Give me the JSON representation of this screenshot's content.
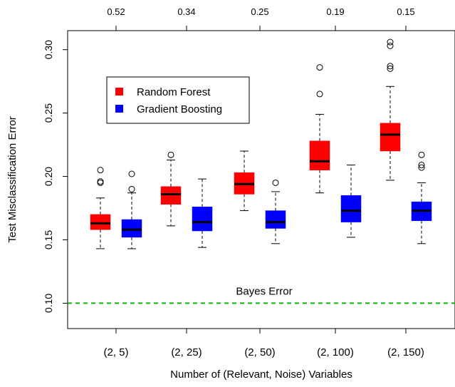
{
  "chart_data": {
    "type": "boxplot",
    "xlabel": "Number of (Relevant, Noise) Variables",
    "ylabel": "Test Misclassification Error",
    "ylim": [
      0.08,
      0.315
    ],
    "yticks": [
      "0.10",
      "0.15",
      "0.20",
      "0.25",
      "0.30"
    ],
    "ytick_values": [
      0.1,
      0.15,
      0.2,
      0.25,
      0.3
    ],
    "categories": [
      "(2, 5)",
      "(2, 25)",
      "(2, 50)",
      "(2, 100)",
      "(2, 150)"
    ],
    "top_axis_labels": [
      "0.52",
      "0.34",
      "0.25",
      "0.19",
      "0.15"
    ],
    "legend_position": "upper-left",
    "series": [
      {
        "name": "Random Forest",
        "color": "#ff0000",
        "boxes": [
          {
            "whisker_low": 0.143,
            "q1": 0.158,
            "median": 0.163,
            "q3": 0.17,
            "whisker_high": 0.183,
            "outliers": [
              0.195,
              0.196,
              0.205
            ]
          },
          {
            "whisker_low": 0.161,
            "q1": 0.178,
            "median": 0.186,
            "q3": 0.192,
            "whisker_high": 0.213,
            "outliers": [
              0.217
            ]
          },
          {
            "whisker_low": 0.173,
            "q1": 0.186,
            "median": 0.194,
            "q3": 0.203,
            "whisker_high": 0.22,
            "outliers": []
          },
          {
            "whisker_low": 0.187,
            "q1": 0.205,
            "median": 0.212,
            "q3": 0.228,
            "whisker_high": 0.249,
            "outliers": [
              0.265,
              0.286
            ]
          },
          {
            "whisker_low": 0.197,
            "q1": 0.22,
            "median": 0.233,
            "q3": 0.242,
            "whisker_high": 0.271,
            "outliers": [
              0.285,
              0.287,
              0.303,
              0.306
            ]
          }
        ]
      },
      {
        "name": "Gradient Boosting",
        "color": "#0000ff",
        "boxes": [
          {
            "whisker_low": 0.143,
            "q1": 0.152,
            "median": 0.158,
            "q3": 0.166,
            "whisker_high": 0.187,
            "outliers": [
              0.19,
              0.202
            ]
          },
          {
            "whisker_low": 0.144,
            "q1": 0.157,
            "median": 0.164,
            "q3": 0.176,
            "whisker_high": 0.198,
            "outliers": []
          },
          {
            "whisker_low": 0.147,
            "q1": 0.159,
            "median": 0.164,
            "q3": 0.173,
            "whisker_high": 0.188,
            "outliers": [
              0.195
            ]
          },
          {
            "whisker_low": 0.152,
            "q1": 0.164,
            "median": 0.173,
            "q3": 0.185,
            "whisker_high": 0.209,
            "outliers": []
          },
          {
            "whisker_low": 0.147,
            "q1": 0.165,
            "median": 0.173,
            "q3": 0.18,
            "whisker_high": 0.195,
            "outliers": [
              0.207,
              0.209,
              0.217
            ]
          }
        ]
      }
    ],
    "reference_line": {
      "label": "Bayes Error",
      "value": 0.1,
      "color": "#00bb00",
      "style": "dashed"
    }
  }
}
